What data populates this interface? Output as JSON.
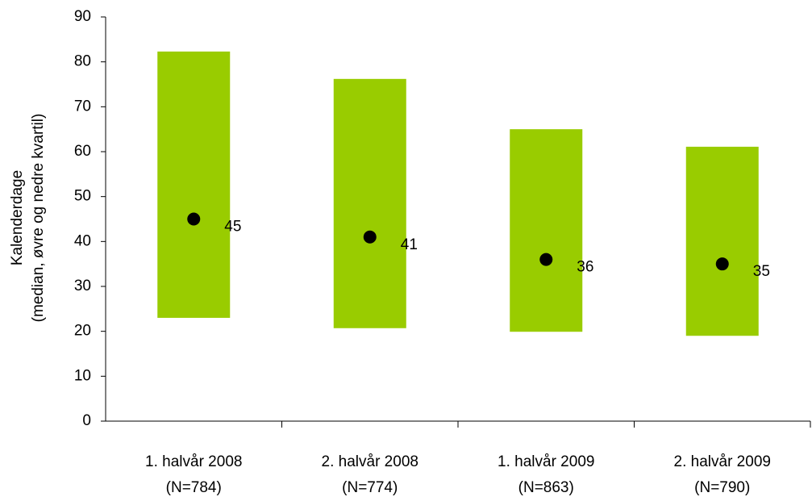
{
  "chart_data": {
    "type": "range",
    "ylabel": [
      "Kalenderdage",
      "(median, øvre og nedre kvartil)"
    ],
    "categories": [
      "1. halvår 2008",
      "2. halvår 2008",
      "1. halvår 2009",
      "2. halvår 2009"
    ],
    "sample_sizes": [
      "(N=784)",
      "(N=774)",
      "(N=863)",
      "(N=790)"
    ],
    "q1": [
      23,
      20.7,
      19.9,
      19
    ],
    "q3": [
      82.3,
      76.2,
      65,
      61.1
    ],
    "median": [
      45,
      41,
      36,
      35
    ],
    "range_color": "#99cc00",
    "median_color": "#000000",
    "ylim": [
      0,
      90
    ],
    "yticks": [
      0,
      10,
      20,
      30,
      40,
      50,
      60,
      70,
      80,
      90
    ]
  }
}
